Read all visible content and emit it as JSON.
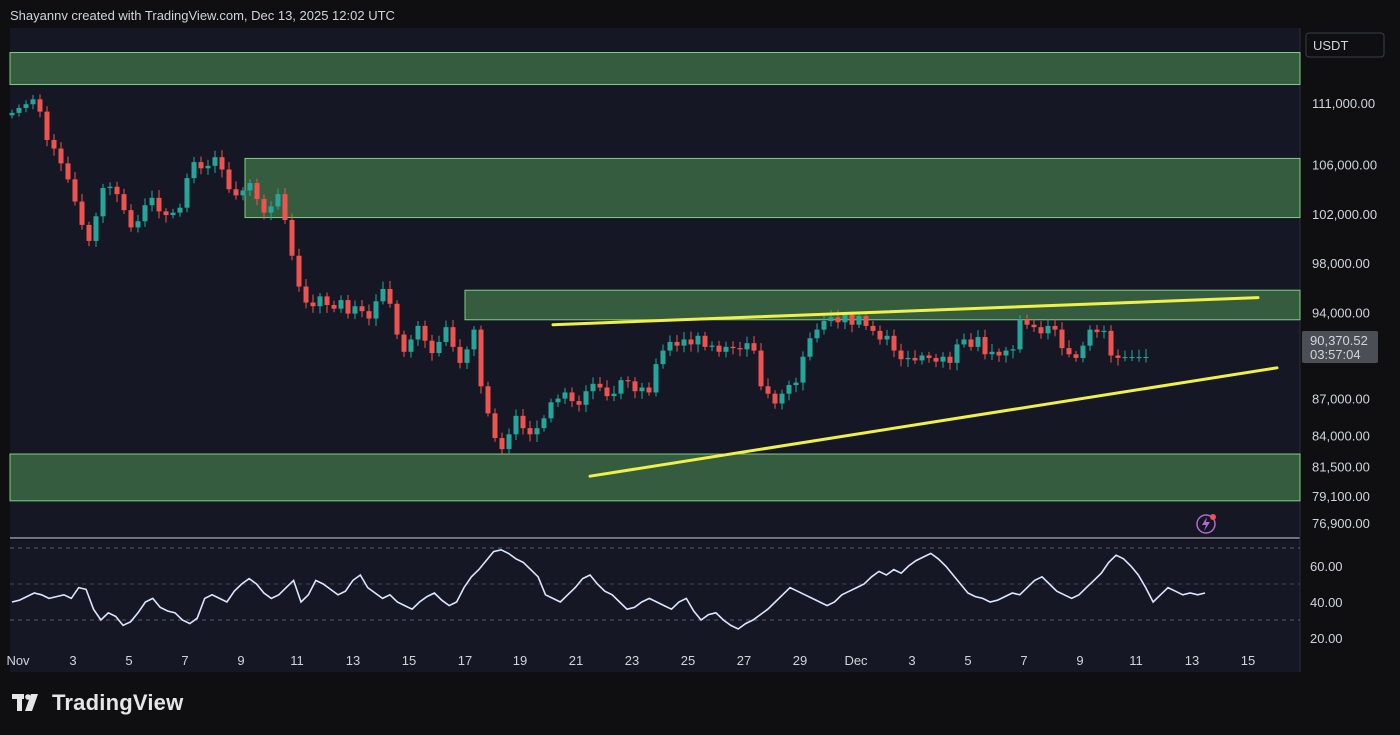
{
  "attribution": "Shayannv created with TradingView.com, Dec 13, 2025 12:02 UTC",
  "brand": "TradingView",
  "currency": "USDT",
  "colors": {
    "background": "#0f0f12",
    "panel": "#151824",
    "zone_fill": "#3f6f45",
    "zone_border": "#7fcf7f",
    "up": "#26a69a",
    "down": "#ef5350",
    "trendline": "#f0f04a",
    "rsi": "#dde4ff",
    "price_label_bg": "#4c4e56"
  },
  "chart_data": [
    {
      "type": "candlestick",
      "title": "",
      "ylabel": "USDT",
      "ylim": [
        75000,
        118000
      ],
      "price_ticks": [
        111000,
        106000,
        102000,
        98000,
        94000,
        87000,
        84000,
        81500,
        79100,
        76900
      ],
      "price_tick_labels": [
        "111,000.00",
        "106,000.00",
        "102,000.00",
        "98,000.00",
        "94,000.00",
        "87,000.00",
        "84,000.00",
        "81,500.00",
        "79,100.00",
        "76,900.00"
      ],
      "x_tick_labels": [
        "Nov",
        "3",
        "5",
        "7",
        "9",
        "11",
        "13",
        "15",
        "17",
        "19",
        "21",
        "23",
        "25",
        "27",
        "29",
        "Dec",
        "3",
        "5",
        "7",
        "9",
        "11",
        "13",
        "15"
      ],
      "current_price": "90,370.52",
      "countdown": "03:57:04",
      "zones": [
        {
          "low": 112500,
          "high": 115100
        },
        {
          "low": 101700,
          "high": 106500
        },
        {
          "low": 93400,
          "high": 95800
        },
        {
          "low": 78700,
          "high": 82500
        }
      ],
      "trendlines": [
        {
          "from": [
            "Nov 20",
            93000
          ],
          "to": [
            "Dec 16",
            95200
          ]
        },
        {
          "from": [
            "Nov 21",
            80700
          ],
          "to": [
            "Dec 17",
            89500
          ]
        }
      ],
      "closes": [
        110200,
        110600,
        110900,
        111300,
        110300,
        108000,
        107300,
        106100,
        104800,
        103000,
        101100,
        99800,
        101800,
        104100,
        104200,
        103600,
        102300,
        100900,
        101400,
        102700,
        103300,
        102200,
        101900,
        102100,
        102500,
        104900,
        106200,
        105700,
        105900,
        106600,
        105600,
        104000,
        103500,
        103900,
        104500,
        103200,
        102100,
        102600,
        103600,
        101500,
        98600,
        96100,
        94800,
        94500,
        95300,
        94600,
        94300,
        95000,
        93900,
        94500,
        94100,
        93500,
        94900,
        95900,
        94700,
        92200,
        90800,
        91800,
        92900,
        91700,
        90700,
        91600,
        92800,
        91200,
        89900,
        91000,
        92600,
        88000,
        85800,
        83800,
        82900,
        84100,
        85600,
        84600,
        84100,
        84600,
        85400,
        86700,
        87000,
        87500,
        86800,
        86500,
        87600,
        88200,
        87900,
        87200,
        87400,
        88500,
        88400,
        87600,
        87900,
        87500,
        89800,
        90900,
        91600,
        91300,
        91800,
        91400,
        92100,
        91200,
        91300,
        90800,
        91200,
        91100,
        91000,
        91500,
        90900,
        88000,
        87400,
        86600,
        87400,
        88100,
        88300,
        90400,
        91900,
        92600,
        93300,
        93600,
        93200,
        93800,
        93000,
        93700,
        92900,
        92500,
        91800,
        92100,
        90900,
        90200,
        90300,
        90100,
        90500,
        90300,
        90000,
        90400,
        89900,
        91400,
        91800,
        91200,
        92000,
        90600,
        90800,
        90500,
        90900,
        91000,
        93400,
        93000,
        92800,
        92300,
        92900,
        92600,
        91100,
        90600,
        90300,
        91300,
        92600,
        92400,
        92500,
        90500,
        90300,
        90370,
        90370,
        90370,
        90380
      ],
      "rsi": {
        "ticks": [
          60,
          40,
          20
        ],
        "tick_labels": [
          "60.00",
          "40.00",
          "20.00"
        ],
        "levels": [
          70,
          30
        ],
        "values": [
          40,
          41,
          43,
          45,
          44,
          42,
          43,
          44,
          42,
          48,
          47,
          36,
          30,
          34,
          32,
          27,
          29,
          34,
          40,
          42,
          37,
          35,
          34,
          30,
          28,
          31,
          42,
          44,
          42,
          40,
          46,
          50,
          53,
          50,
          45,
          42,
          44,
          48,
          52,
          40,
          44,
          52,
          50,
          47,
          44,
          46,
          52,
          55,
          48,
          45,
          42,
          44,
          40,
          38,
          36,
          40,
          43,
          45,
          41,
          38,
          40,
          48,
          54,
          58,
          63,
          68,
          69,
          67,
          64,
          62,
          58,
          54,
          44,
          42,
          40,
          44,
          48,
          53,
          55,
          50,
          46,
          44,
          40,
          36,
          37,
          40,
          42,
          40,
          38,
          36,
          40,
          42,
          35,
          30,
          33,
          34,
          30,
          27,
          25,
          28,
          30,
          33,
          36,
          40,
          44,
          48,
          46,
          44,
          42,
          40,
          38,
          40,
          44,
          46,
          48,
          50,
          54,
          57,
          55,
          58,
          56,
          60,
          63,
          65,
          67,
          64,
          60,
          55,
          50,
          45,
          43,
          42,
          40,
          41,
          43,
          45,
          44,
          48,
          52,
          54,
          50,
          46,
          44,
          42,
          44,
          48,
          52,
          56,
          62,
          66,
          64,
          60,
          55,
          48,
          40,
          44,
          48,
          46,
          44,
          45,
          44,
          45
        ]
      }
    }
  ]
}
